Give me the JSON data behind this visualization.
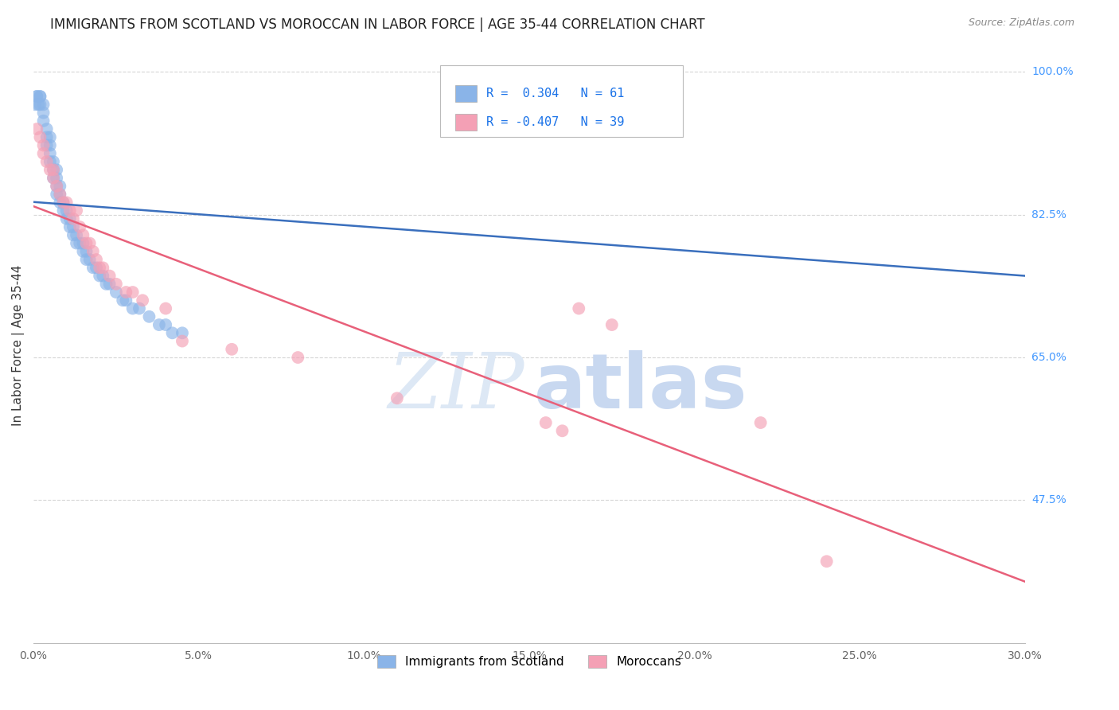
{
  "title": "IMMIGRANTS FROM SCOTLAND VS MOROCCAN IN LABOR FORCE | AGE 35-44 CORRELATION CHART",
  "source": "Source: ZipAtlas.com",
  "ylabel": "In Labor Force | Age 35-44",
  "legend_label1": "Immigrants from Scotland",
  "legend_label2": "Moroccans",
  "R_scotland": 0.304,
  "N_scotland": 61,
  "R_moroccan": -0.407,
  "N_moroccan": 39,
  "scotland_color": "#8ab4e8",
  "moroccan_color": "#f4a0b5",
  "scotland_line_color": "#3a6fbd",
  "moroccan_line_color": "#e8607a",
  "background_color": "#ffffff",
  "grid_color": "#cccccc",
  "xlim": [
    0.0,
    0.3
  ],
  "ylim": [
    0.3,
    1.03
  ],
  "right_labels": [
    [
      1.0,
      "100.0%"
    ],
    [
      0.825,
      "82.5%"
    ],
    [
      0.65,
      "65.0%"
    ],
    [
      0.475,
      "47.5%"
    ]
  ],
  "scotland_x": [
    0.0005,
    0.001,
    0.001,
    0.0015,
    0.002,
    0.002,
    0.002,
    0.003,
    0.003,
    0.003,
    0.004,
    0.004,
    0.004,
    0.005,
    0.005,
    0.005,
    0.005,
    0.006,
    0.006,
    0.006,
    0.007,
    0.007,
    0.007,
    0.007,
    0.008,
    0.008,
    0.008,
    0.009,
    0.009,
    0.01,
    0.01,
    0.011,
    0.011,
    0.012,
    0.012,
    0.013,
    0.013,
    0.014,
    0.015,
    0.015,
    0.016,
    0.016,
    0.017,
    0.018,
    0.019,
    0.02,
    0.021,
    0.022,
    0.023,
    0.025,
    0.027,
    0.028,
    0.03,
    0.032,
    0.035,
    0.038,
    0.04,
    0.042,
    0.045,
    0.16,
    0.158
  ],
  "scotland_y": [
    0.96,
    0.97,
    0.97,
    0.96,
    0.97,
    0.96,
    0.97,
    0.96,
    0.95,
    0.94,
    0.92,
    0.93,
    0.91,
    0.9,
    0.91,
    0.89,
    0.92,
    0.88,
    0.87,
    0.89,
    0.86,
    0.87,
    0.85,
    0.88,
    0.84,
    0.86,
    0.85,
    0.83,
    0.84,
    0.82,
    0.83,
    0.81,
    0.82,
    0.8,
    0.81,
    0.8,
    0.79,
    0.79,
    0.78,
    0.79,
    0.77,
    0.78,
    0.77,
    0.76,
    0.76,
    0.75,
    0.75,
    0.74,
    0.74,
    0.73,
    0.72,
    0.72,
    0.71,
    0.71,
    0.7,
    0.69,
    0.69,
    0.68,
    0.68,
    1.0,
    0.94
  ],
  "moroccan_x": [
    0.001,
    0.002,
    0.003,
    0.003,
    0.004,
    0.005,
    0.006,
    0.006,
    0.007,
    0.008,
    0.009,
    0.01,
    0.011,
    0.012,
    0.013,
    0.014,
    0.015,
    0.016,
    0.017,
    0.018,
    0.019,
    0.02,
    0.021,
    0.023,
    0.025,
    0.028,
    0.03,
    0.033,
    0.04,
    0.045,
    0.06,
    0.08,
    0.11,
    0.155,
    0.16,
    0.165,
    0.175,
    0.22,
    0.24
  ],
  "moroccan_y": [
    0.93,
    0.92,
    0.91,
    0.9,
    0.89,
    0.88,
    0.88,
    0.87,
    0.86,
    0.85,
    0.84,
    0.84,
    0.83,
    0.82,
    0.83,
    0.81,
    0.8,
    0.79,
    0.79,
    0.78,
    0.77,
    0.76,
    0.76,
    0.75,
    0.74,
    0.73,
    0.73,
    0.72,
    0.71,
    0.67,
    0.66,
    0.65,
    0.6,
    0.57,
    0.56,
    0.71,
    0.69,
    0.57,
    0.4
  ]
}
